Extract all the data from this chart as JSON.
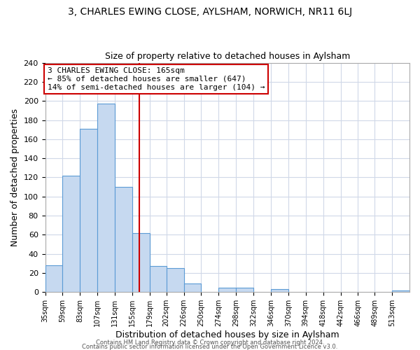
{
  "title_line1": "3, CHARLES EWING CLOSE, AYLSHAM, NORWICH, NR11 6LJ",
  "title_line2": "Size of property relative to detached houses in Aylsham",
  "xlabel": "Distribution of detached houses by size in Aylsham",
  "ylabel": "Number of detached properties",
  "footer_line1": "Contains HM Land Registry data © Crown copyright and database right 2024.",
  "footer_line2": "Contains public sector information licensed under the Open Government Licence v3.0.",
  "bin_labels": [
    "35sqm",
    "59sqm",
    "83sqm",
    "107sqm",
    "131sqm",
    "155sqm",
    "179sqm",
    "202sqm",
    "226sqm",
    "250sqm",
    "274sqm",
    "298sqm",
    "322sqm",
    "346sqm",
    "370sqm",
    "394sqm",
    "418sqm",
    "442sqm",
    "466sqm",
    "489sqm",
    "513sqm"
  ],
  "bin_starts": [
    35,
    59,
    83,
    107,
    131,
    155,
    179,
    202,
    226,
    250,
    274,
    298,
    322,
    346,
    370,
    394,
    418,
    442,
    466,
    489,
    513
  ],
  "bin_end": 537,
  "bar_heights": [
    28,
    122,
    171,
    197,
    110,
    62,
    27,
    25,
    9,
    0,
    5,
    5,
    0,
    3,
    0,
    0,
    0,
    0,
    0,
    0,
    2
  ],
  "bar_color": "#c6d9f0",
  "bar_edge_color": "#5b9bd5",
  "reference_line_x": 165,
  "x_min": 35,
  "x_max": 537,
  "y_min": 0,
  "y_max": 240,
  "yticks": [
    0,
    20,
    40,
    60,
    80,
    100,
    120,
    140,
    160,
    180,
    200,
    220,
    240
  ],
  "annotation_title": "3 CHARLES EWING CLOSE: 165sqm",
  "annotation_line1": "← 85% of detached houses are smaller (647)",
  "annotation_line2": "14% of semi-detached houses are larger (104) →",
  "ref_line_color": "#cc0000",
  "annotation_box_edge": "#cc0000",
  "grid_color": "#d0d8e8",
  "background_color": "#ffffff"
}
